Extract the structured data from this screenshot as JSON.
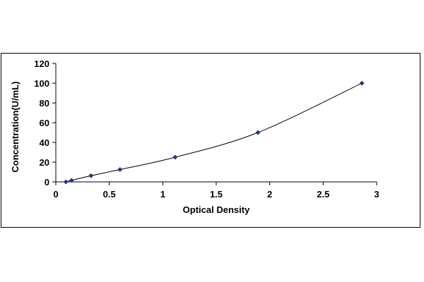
{
  "chart_data": {
    "type": "scatter",
    "title": "",
    "xlabel": "Optical Density",
    "ylabel": "Concentration(U/mL)",
    "xlim": [
      0,
      3
    ],
    "ylim": [
      0,
      120
    ],
    "x_ticks": [
      0,
      0.5,
      1,
      1.5,
      2,
      2.5,
      3
    ],
    "x_tick_labels": [
      "0",
      "0.5",
      "1",
      "1.5",
      "2",
      "2.5",
      "3"
    ],
    "y_ticks": [
      0,
      20,
      40,
      60,
      80,
      100,
      120
    ],
    "y_tick_labels": [
      "0",
      "20",
      "40",
      "60",
      "80",
      "100",
      "120"
    ],
    "grid": false,
    "legend": "none",
    "series": [
      {
        "x": [
          0.094,
          0.147,
          0.329,
          0.6,
          1.116,
          1.89,
          2.862
        ],
        "y": [
          0,
          1.56,
          6.25,
          12.5,
          25,
          50,
          100
        ],
        "marker": "diamond",
        "color": "#1f3a7a",
        "trendline": true,
        "trendline_color": "#000000"
      }
    ]
  }
}
